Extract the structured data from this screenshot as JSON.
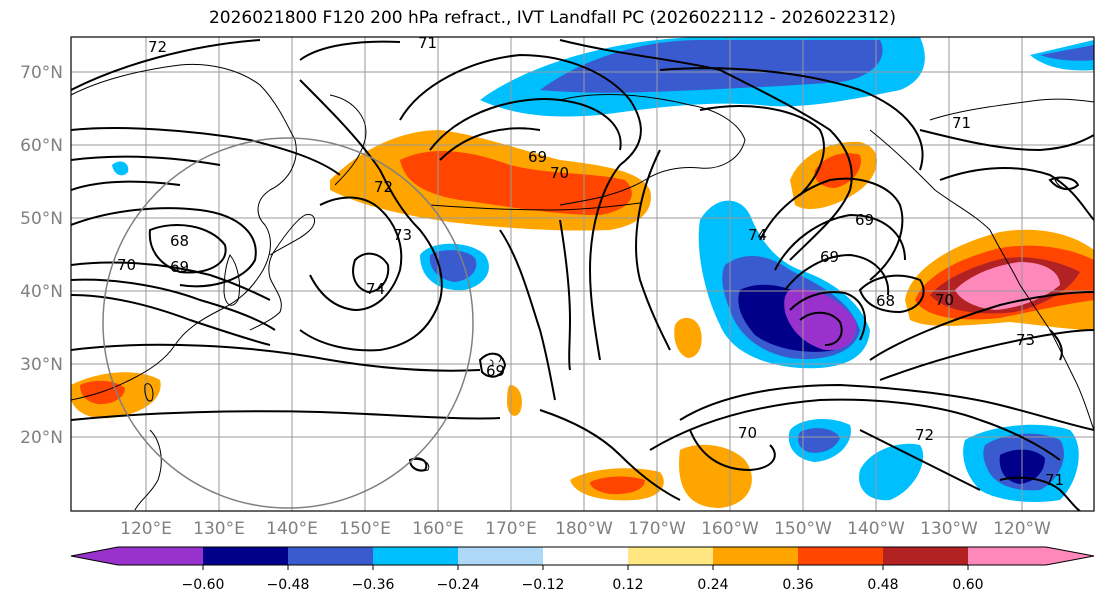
{
  "title": "2026021800 F120 200 hPa refract., IVT Landfall PC (2026022112 - 2026022312)",
  "lat_labels": [
    "70°N",
    "60°N",
    "50°N",
    "40°N",
    "30°N",
    "20°N"
  ],
  "lon_labels": [
    "120°E",
    "130°E",
    "140°E",
    "150°E",
    "160°E",
    "170°E",
    "180°W",
    "170°W",
    "160°W",
    "150°W",
    "140°W",
    "130°W",
    "120°W"
  ],
  "contour_labels": [
    "71",
    "72",
    "69",
    "70",
    "72",
    "73",
    "74",
    "68",
    "69",
    "70",
    "71",
    "69",
    "69",
    "74",
    "69",
    "68",
    "70",
    "70",
    "72",
    "71",
    "73"
  ],
  "colorbar": {
    "colors": [
      "#9932cc",
      "#00008b",
      "#3a5bcf",
      "#00bfff",
      "#add8f6",
      "#ffffff",
      "#ffe680",
      "#ffa500",
      "#ff4500",
      "#b22222",
      "#ff88bb"
    ],
    "tick_labels": [
      "−0.60",
      "−0.48",
      "−0.36",
      "−0.24",
      "−0.12",
      "0.12",
      "0.24",
      "0.36",
      "0.48",
      "0.60"
    ]
  },
  "legend_colors": {
    "neg_strong": "#9932cc",
    "neg_2": "#00008b",
    "neg_3": "#3a5bcf",
    "neg_4": "#00bfff",
    "neg_5": "#add8f6",
    "pos_1": "#ffe680",
    "pos_2": "#ffa500",
    "pos_3": "#ff4500",
    "pos_4": "#b22222",
    "pos_strong": "#ff88bb"
  }
}
